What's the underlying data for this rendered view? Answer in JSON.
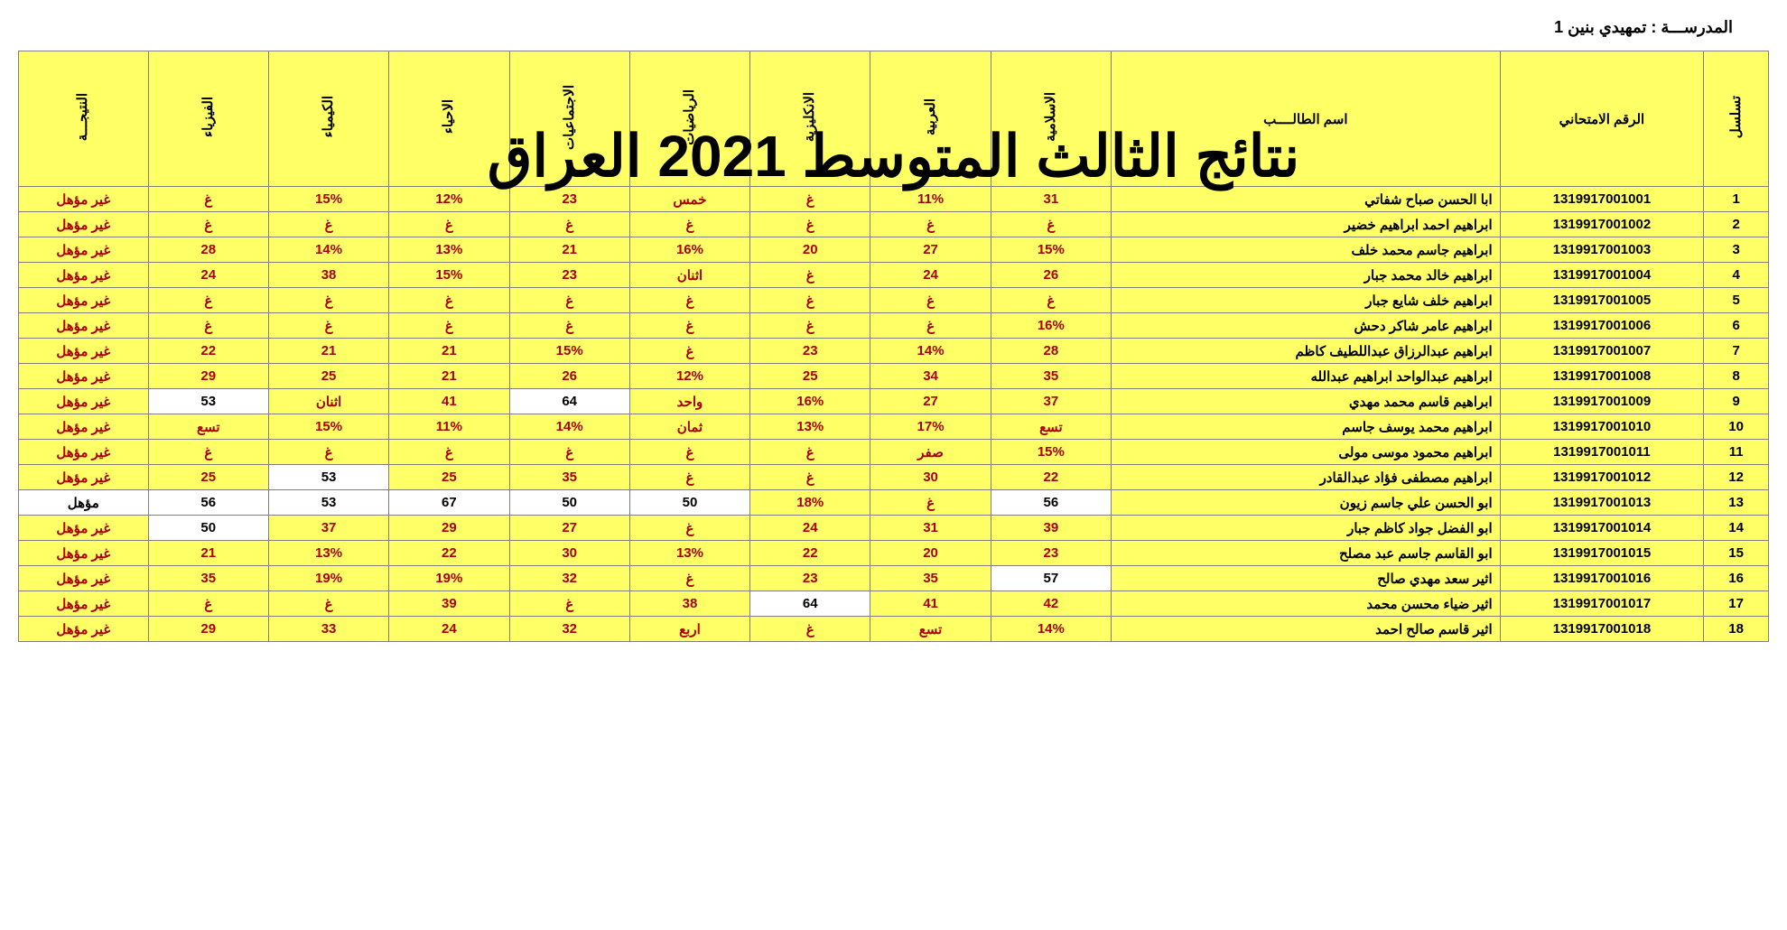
{
  "school_label": "المدرســـة :",
  "school_name": "تمهيدي بنين 1",
  "overlay_title": "نتائج الثالث المتوسط 2021 العراق",
  "headers": {
    "seq": "تسلسل",
    "exam_id": "الرقم الامتحاني",
    "student_name": "اسم الطالــــب",
    "islamic": "الاسلامية",
    "arabic": "العربية",
    "english": "الانكليزية",
    "math": "الرياضيات",
    "social": "الاجتماعيات",
    "biology": "الاحياء",
    "chemistry": "الكيمياء",
    "physics": "الفيزياء",
    "result": "النتيجـــة"
  },
  "rows": [
    {
      "seq": "1",
      "id": "1319917001001",
      "name": "ابا الحسن صباح شفاتي",
      "islamic": {
        "v": "31",
        "c": "y"
      },
      "arabic": {
        "v": "11%",
        "c": "y"
      },
      "english": {
        "v": "غ",
        "c": "y"
      },
      "math": {
        "v": "خمس",
        "c": "y"
      },
      "social": {
        "v": "23",
        "c": "y"
      },
      "biology": {
        "v": "12%",
        "c": "y"
      },
      "chemistry": {
        "v": "15%",
        "c": "y"
      },
      "physics": {
        "v": "غ",
        "c": "y"
      },
      "result": {
        "v": "غير مؤهل",
        "c": "y"
      }
    },
    {
      "seq": "2",
      "id": "1319917001002",
      "name": "ابراهيم احمد ابراهيم خضير",
      "islamic": {
        "v": "غ",
        "c": "y"
      },
      "arabic": {
        "v": "غ",
        "c": "y"
      },
      "english": {
        "v": "غ",
        "c": "y"
      },
      "math": {
        "v": "غ",
        "c": "y"
      },
      "social": {
        "v": "غ",
        "c": "y"
      },
      "biology": {
        "v": "غ",
        "c": "y"
      },
      "chemistry": {
        "v": "غ",
        "c": "y"
      },
      "physics": {
        "v": "غ",
        "c": "y"
      },
      "result": {
        "v": "غير مؤهل",
        "c": "y"
      }
    },
    {
      "seq": "3",
      "id": "1319917001003",
      "name": "ابراهيم جاسم محمد خلف",
      "islamic": {
        "v": "15%",
        "c": "y"
      },
      "arabic": {
        "v": "27",
        "c": "y"
      },
      "english": {
        "v": "20",
        "c": "y"
      },
      "math": {
        "v": "16%",
        "c": "y"
      },
      "social": {
        "v": "21",
        "c": "y"
      },
      "biology": {
        "v": "13%",
        "c": "y"
      },
      "chemistry": {
        "v": "14%",
        "c": "y"
      },
      "physics": {
        "v": "28",
        "c": "y"
      },
      "result": {
        "v": "غير مؤهل",
        "c": "y"
      }
    },
    {
      "seq": "4",
      "id": "1319917001004",
      "name": "ابراهيم خالد محمد جبار",
      "islamic": {
        "v": "26",
        "c": "y"
      },
      "arabic": {
        "v": "24",
        "c": "y"
      },
      "english": {
        "v": "غ",
        "c": "y"
      },
      "math": {
        "v": "اثنان",
        "c": "y"
      },
      "social": {
        "v": "23",
        "c": "y"
      },
      "biology": {
        "v": "15%",
        "c": "y"
      },
      "chemistry": {
        "v": "38",
        "c": "y"
      },
      "physics": {
        "v": "24",
        "c": "y"
      },
      "result": {
        "v": "غير مؤهل",
        "c": "y"
      }
    },
    {
      "seq": "5",
      "id": "1319917001005",
      "name": "ابراهيم خلف شايع جبار",
      "islamic": {
        "v": "غ",
        "c": "y"
      },
      "arabic": {
        "v": "غ",
        "c": "y"
      },
      "english": {
        "v": "غ",
        "c": "y"
      },
      "math": {
        "v": "غ",
        "c": "y"
      },
      "social": {
        "v": "غ",
        "c": "y"
      },
      "biology": {
        "v": "غ",
        "c": "y"
      },
      "chemistry": {
        "v": "غ",
        "c": "y"
      },
      "physics": {
        "v": "غ",
        "c": "y"
      },
      "result": {
        "v": "غير مؤهل",
        "c": "y"
      }
    },
    {
      "seq": "6",
      "id": "1319917001006",
      "name": "ابراهيم عامر شاكر دحش",
      "islamic": {
        "v": "16%",
        "c": "y"
      },
      "arabic": {
        "v": "غ",
        "c": "y"
      },
      "english": {
        "v": "غ",
        "c": "y"
      },
      "math": {
        "v": "غ",
        "c": "y"
      },
      "social": {
        "v": "غ",
        "c": "y"
      },
      "biology": {
        "v": "غ",
        "c": "y"
      },
      "chemistry": {
        "v": "غ",
        "c": "y"
      },
      "physics": {
        "v": "غ",
        "c": "y"
      },
      "result": {
        "v": "غير مؤهل",
        "c": "y"
      }
    },
    {
      "seq": "7",
      "id": "1319917001007",
      "name": "ابراهيم عبدالرزاق عبداللطيف كاظم",
      "islamic": {
        "v": "28",
        "c": "y"
      },
      "arabic": {
        "v": "14%",
        "c": "y"
      },
      "english": {
        "v": "23",
        "c": "y"
      },
      "math": {
        "v": "غ",
        "c": "y"
      },
      "social": {
        "v": "15%",
        "c": "y"
      },
      "biology": {
        "v": "21",
        "c": "y"
      },
      "chemistry": {
        "v": "21",
        "c": "y"
      },
      "physics": {
        "v": "22",
        "c": "y"
      },
      "result": {
        "v": "غير مؤهل",
        "c": "y"
      }
    },
    {
      "seq": "8",
      "id": "1319917001008",
      "name": "ابراهيم عبدالواحد ابراهيم عبدالله",
      "islamic": {
        "v": "35",
        "c": "y"
      },
      "arabic": {
        "v": "34",
        "c": "y"
      },
      "english": {
        "v": "25",
        "c": "y"
      },
      "math": {
        "v": "12%",
        "c": "y"
      },
      "social": {
        "v": "26",
        "c": "y"
      },
      "biology": {
        "v": "21",
        "c": "y"
      },
      "chemistry": {
        "v": "25",
        "c": "y"
      },
      "physics": {
        "v": "29",
        "c": "y"
      },
      "result": {
        "v": "غير مؤهل",
        "c": "y"
      }
    },
    {
      "seq": "9",
      "id": "1319917001009",
      "name": "ابراهيم قاسم  محمد مهدي",
      "islamic": {
        "v": "37",
        "c": "y"
      },
      "arabic": {
        "v": "27",
        "c": "y"
      },
      "english": {
        "v": "16%",
        "c": "y"
      },
      "math": {
        "v": "واحد",
        "c": "y"
      },
      "social": {
        "v": "64",
        "c": "w"
      },
      "biology": {
        "v": "41",
        "c": "y"
      },
      "chemistry": {
        "v": "اثنان",
        "c": "y"
      },
      "physics": {
        "v": "53",
        "c": "w"
      },
      "result": {
        "v": "غير مؤهل",
        "c": "y"
      }
    },
    {
      "seq": "10",
      "id": "1319917001010",
      "name": "ابراهيم محمد يوسف جاسم",
      "islamic": {
        "v": "تسع",
        "c": "y"
      },
      "arabic": {
        "v": "17%",
        "c": "y"
      },
      "english": {
        "v": "13%",
        "c": "y"
      },
      "math": {
        "v": "ثمان",
        "c": "y"
      },
      "social": {
        "v": "14%",
        "c": "y"
      },
      "biology": {
        "v": "11%",
        "c": "y"
      },
      "chemistry": {
        "v": "15%",
        "c": "y"
      },
      "physics": {
        "v": "تسع",
        "c": "y"
      },
      "result": {
        "v": "غير مؤهل",
        "c": "y"
      }
    },
    {
      "seq": "11",
      "id": "1319917001011",
      "name": "ابراهيم محمود موسى مولى",
      "islamic": {
        "v": "15%",
        "c": "y"
      },
      "arabic": {
        "v": "صفر",
        "c": "y"
      },
      "english": {
        "v": "غ",
        "c": "y"
      },
      "math": {
        "v": "غ",
        "c": "y"
      },
      "social": {
        "v": "غ",
        "c": "y"
      },
      "biology": {
        "v": "غ",
        "c": "y"
      },
      "chemistry": {
        "v": "غ",
        "c": "y"
      },
      "physics": {
        "v": "غ",
        "c": "y"
      },
      "result": {
        "v": "غير مؤهل",
        "c": "y"
      }
    },
    {
      "seq": "12",
      "id": "1319917001012",
      "name": "ابراهيم مصطفى فؤاد عبدالقادر",
      "islamic": {
        "v": "22",
        "c": "y"
      },
      "arabic": {
        "v": "30",
        "c": "y"
      },
      "english": {
        "v": "غ",
        "c": "y"
      },
      "math": {
        "v": "غ",
        "c": "y"
      },
      "social": {
        "v": "35",
        "c": "y"
      },
      "biology": {
        "v": "25",
        "c": "y"
      },
      "chemistry": {
        "v": "53",
        "c": "w"
      },
      "physics": {
        "v": "25",
        "c": "y"
      },
      "result": {
        "v": "غير مؤهل",
        "c": "y"
      }
    },
    {
      "seq": "13",
      "id": "1319917001013",
      "name": "ابو الحسن علي جاسم زيون",
      "islamic": {
        "v": "56",
        "c": "w"
      },
      "arabic": {
        "v": "غ",
        "c": "y"
      },
      "english": {
        "v": "18%",
        "c": "y"
      },
      "math": {
        "v": "50",
        "c": "w"
      },
      "social": {
        "v": "50",
        "c": "w"
      },
      "biology": {
        "v": "67",
        "c": "w"
      },
      "chemistry": {
        "v": "53",
        "c": "w"
      },
      "physics": {
        "v": "56",
        "c": "w"
      },
      "result": {
        "v": "مؤهل",
        "c": "w"
      }
    },
    {
      "seq": "14",
      "id": "1319917001014",
      "name": "ابو الفضل جواد كاظم جبار",
      "islamic": {
        "v": "39",
        "c": "y"
      },
      "arabic": {
        "v": "31",
        "c": "y"
      },
      "english": {
        "v": "24",
        "c": "y"
      },
      "math": {
        "v": "غ",
        "c": "y"
      },
      "social": {
        "v": "27",
        "c": "y"
      },
      "biology": {
        "v": "29",
        "c": "y"
      },
      "chemistry": {
        "v": "37",
        "c": "y"
      },
      "physics": {
        "v": "50",
        "c": "w"
      },
      "result": {
        "v": "غير مؤهل",
        "c": "y"
      }
    },
    {
      "seq": "15",
      "id": "1319917001015",
      "name": "ابو القاسم جاسم عبد مصلح",
      "islamic": {
        "v": "23",
        "c": "y"
      },
      "arabic": {
        "v": "20",
        "c": "y"
      },
      "english": {
        "v": "22",
        "c": "y"
      },
      "math": {
        "v": "13%",
        "c": "y"
      },
      "social": {
        "v": "30",
        "c": "y"
      },
      "biology": {
        "v": "22",
        "c": "y"
      },
      "chemistry": {
        "v": "13%",
        "c": "y"
      },
      "physics": {
        "v": "21",
        "c": "y"
      },
      "result": {
        "v": "غير مؤهل",
        "c": "y"
      }
    },
    {
      "seq": "16",
      "id": "1319917001016",
      "name": "اثير سعد مهدي صالح",
      "islamic": {
        "v": "57",
        "c": "w"
      },
      "arabic": {
        "v": "35",
        "c": "y"
      },
      "english": {
        "v": "23",
        "c": "y"
      },
      "math": {
        "v": "غ",
        "c": "y"
      },
      "social": {
        "v": "32",
        "c": "y"
      },
      "biology": {
        "v": "19%",
        "c": "y"
      },
      "chemistry": {
        "v": "19%",
        "c": "y"
      },
      "physics": {
        "v": "35",
        "c": "y"
      },
      "result": {
        "v": "غير مؤهل",
        "c": "y"
      }
    },
    {
      "seq": "17",
      "id": "1319917001017",
      "name": "اثير ضياء محسن محمد",
      "islamic": {
        "v": "42",
        "c": "y"
      },
      "arabic": {
        "v": "41",
        "c": "y"
      },
      "english": {
        "v": "64",
        "c": "w"
      },
      "math": {
        "v": "38",
        "c": "y"
      },
      "social": {
        "v": "غ",
        "c": "y"
      },
      "biology": {
        "v": "39",
        "c": "y"
      },
      "chemistry": {
        "v": "غ",
        "c": "y"
      },
      "physics": {
        "v": "غ",
        "c": "y"
      },
      "result": {
        "v": "غير مؤهل",
        "c": "y"
      }
    },
    {
      "seq": "18",
      "id": "1319917001018",
      "name": "اثير قاسم صالح احمد",
      "islamic": {
        "v": "14%",
        "c": "y"
      },
      "arabic": {
        "v": "تسع",
        "c": "y"
      },
      "english": {
        "v": "غ",
        "c": "y"
      },
      "math": {
        "v": "اربع",
        "c": "y"
      },
      "social": {
        "v": "32",
        "c": "y"
      },
      "biology": {
        "v": "24",
        "c": "y"
      },
      "chemistry": {
        "v": "33",
        "c": "y"
      },
      "physics": {
        "v": "29",
        "c": "y"
      },
      "result": {
        "v": "غير مؤهل",
        "c": "y"
      }
    }
  ]
}
